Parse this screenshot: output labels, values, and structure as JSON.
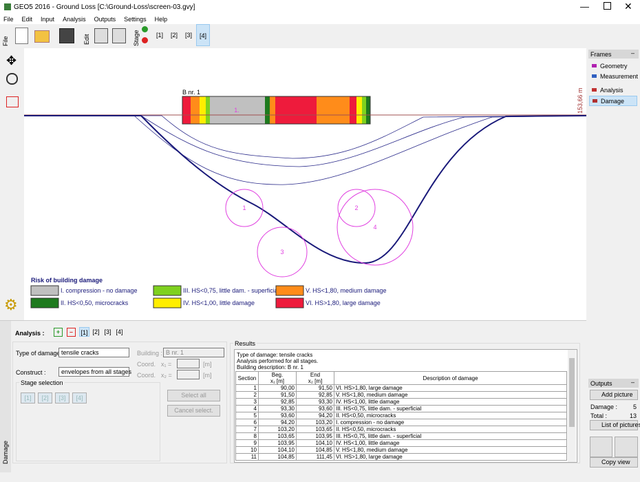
{
  "window": {
    "title": "GEO5 2016 - Ground Loss [C:\\Ground-Loss\\screen-03.gvy]"
  },
  "menu": [
    "File",
    "Edit",
    "Input",
    "Analysis",
    "Outputs",
    "Settings",
    "Help"
  ],
  "toolbar": {
    "file": "File",
    "edit": "Edit",
    "stage": "Stage",
    "stages": [
      "[1]",
      "[2]",
      "[3]",
      "[4]"
    ]
  },
  "canvas": {
    "building": "B nr. 1",
    "elevation": "153,66 m",
    "segment_label": "1.",
    "circles": [
      "1",
      "2",
      "3",
      "4"
    ],
    "legend": {
      "title": "Risk of building damage",
      "items": [
        "I. compression - no damage",
        "II. HS<0,50, microcracks",
        "III. HS<0,75, little dam. - superficial",
        "IV. HS<1,00, little damage",
        "V. HS<1,80, medium damage",
        "VI. HS>1,80, large damage"
      ]
    }
  },
  "frames": {
    "title": "Frames",
    "items": [
      "Geometry",
      "Measurement",
      "Analysis",
      "Damage"
    ]
  },
  "analysis": {
    "tab": "Damage",
    "label": "Analysis :",
    "stages": [
      "[1]",
      "[2]",
      "[3]",
      "[4]"
    ],
    "type_label": "Type of damage :",
    "type_value": "tensile cracks",
    "construct_label": "Construct :",
    "construct_value": "envelopes from all stages",
    "building_label": "Building :",
    "building_value": "B nr. 1",
    "coord": "Coord.",
    "x1": "x₁ =",
    "x2": "x₂ =",
    "unit": "[m]",
    "stage_selection": "Stage selection",
    "selection_stages": [
      "[1]",
      "[2]",
      "[3]",
      "[4]"
    ],
    "select_all": "Select all",
    "cancel_select": "Cancel select."
  },
  "results": {
    "title": "Results",
    "lines": [
      "Type of damage: tensile cracks",
      "Analysis performed for all stages.",
      "Building description: B nr. 1"
    ],
    "headers": [
      "Section",
      "Beg.",
      "x₁ [m]",
      "End",
      "x₂ [m]",
      "Description of damage"
    ],
    "rows": [
      [
        "1",
        "90,00",
        "91,50",
        "VI. HS>1,80, large damage"
      ],
      [
        "2",
        "91,50",
        "92,85",
        "V. HS<1,80, medium damage"
      ],
      [
        "3",
        "92,85",
        "93,30",
        "IV. HS<1,00, little damage"
      ],
      [
        "4",
        "93,30",
        "93,60",
        "III. HS<0,75, little dam. - superficial"
      ],
      [
        "5",
        "93,60",
        "94,20",
        "II. HS<0,50, microcracks"
      ],
      [
        "6",
        "94,20",
        "103,20",
        "I. compression - no damage"
      ],
      [
        "7",
        "103,20",
        "103,65",
        "II. HS<0,50, microcracks"
      ],
      [
        "8",
        "103,65",
        "103,95",
        "III. HS<0,75, little dam. - superficial"
      ],
      [
        "9",
        "103,95",
        "104,10",
        "IV. HS<1,00, little damage"
      ],
      [
        "10",
        "104,10",
        "104,85",
        "V. HS<1,80, medium damage"
      ],
      [
        "11",
        "104,85",
        "111,45",
        "VI. HS>1,80, large damage"
      ]
    ]
  },
  "outputs": {
    "title": "Outputs",
    "add_picture": "Add picture",
    "damage_label": "Damage :",
    "damage_value": "5",
    "total_label": "Total :",
    "total_value": "13",
    "list_pictures": "List of pictures",
    "copy_view": "Copy view"
  }
}
